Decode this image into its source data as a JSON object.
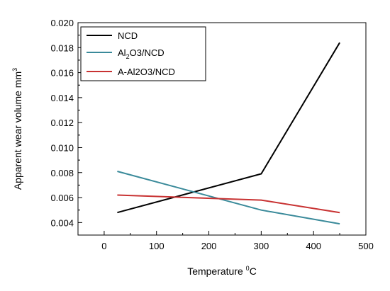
{
  "chart_data": {
    "type": "line",
    "xlabel": "Temperature",
    "xlabel_sup": "0",
    "xlabel_unit": "C",
    "ylabel": "Apparent wear volume mm",
    "ylabel_sup": "3",
    "xlim": [
      -50,
      500
    ],
    "ylim": [
      0.003,
      0.02
    ],
    "xticks": [
      0,
      100,
      200,
      300,
      400,
      500
    ],
    "yticks": [
      0.004,
      0.006,
      0.008,
      0.01,
      0.012,
      0.014,
      0.016,
      0.018,
      0.02
    ],
    "ytick_labels": [
      "0.004",
      "0.006",
      "0.008",
      "0.010",
      "0.012",
      "0.014",
      "0.016",
      "0.018",
      "0.020"
    ],
    "legend_position": "top-left",
    "series": [
      {
        "name": "NCD",
        "color": "#000000",
        "x": [
          25,
          300,
          450
        ],
        "y": [
          0.0048,
          0.0079,
          0.0184
        ]
      },
      {
        "name": "Al2O3/NCD",
        "legend_parts": [
          {
            "text": "Al",
            "sub": false
          },
          {
            "text": "2",
            "sub": true
          },
          {
            "text": "O3/NCD",
            "sub": false
          }
        ],
        "color": "#3a8a9a",
        "x": [
          25,
          300,
          450
        ],
        "y": [
          0.0081,
          0.005,
          0.0039
        ]
      },
      {
        "name": "A-Al2O3/NCD",
        "color": "#c83232",
        "x": [
          25,
          300,
          450
        ],
        "y": [
          0.0062,
          0.0058,
          0.0048
        ]
      }
    ]
  }
}
